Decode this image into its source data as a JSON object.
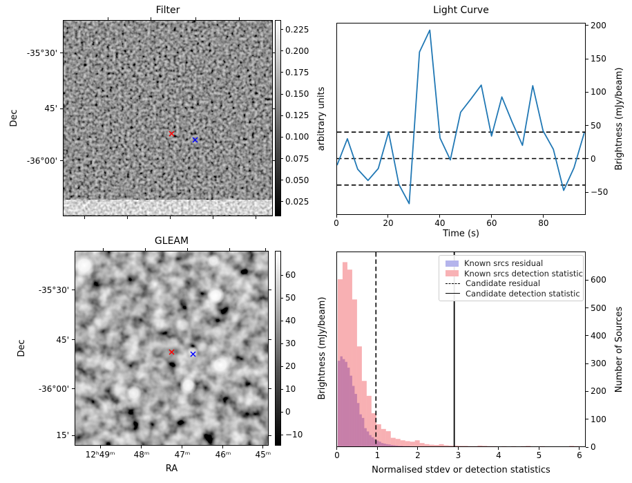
{
  "figure": {
    "background": "#ffffff"
  },
  "colors": {
    "line": "#1f77b4",
    "threshold_lines": "#000000",
    "hist_blue_fill": "rgba(62,62,215,0.42)",
    "hist_pink_fill": "rgba(238,58,66,0.40)",
    "legend_blue_swatch": "#b4b4ec",
    "legend_pink_swatch": "#f8b2b5",
    "marker_red": "#ff0000",
    "marker_blue": "#0000ff"
  },
  "chart_data": [
    {
      "type": "heatmap",
      "title": "Filter",
      "ylabel": "Dec",
      "yticks": [
        {
          "label": "-35°30'",
          "f": 0.169
        },
        {
          "label": "45'",
          "f": 0.451
        },
        {
          "label": "-36°00'",
          "f": 0.718
        }
      ],
      "xticks_bottom_f": [
        0.105,
        0.306,
        0.51,
        0.714,
        0.918
      ],
      "xticks_top_f": [
        0.214,
        0.421,
        0.632,
        0.839
      ],
      "colorbar": {
        "label": "arbitrary units",
        "vmin": 0.008,
        "vmax": 0.236,
        "ticks": [
          "0.225",
          "0.200",
          "0.175",
          "0.150",
          "0.125",
          "0.100",
          "0.075",
          "0.050",
          "0.025"
        ],
        "tick_values": [
          0.225,
          0.2,
          0.175,
          0.15,
          0.125,
          0.1,
          0.075,
          0.05,
          0.025
        ]
      },
      "markers": [
        {
          "name": "candidate-position-red-x",
          "color": "#ff0000",
          "fx": 0.516,
          "fy": 0.563
        },
        {
          "name": "reference-position-blue-x",
          "color": "#0000ff",
          "fx": 0.628,
          "fy": 0.592
        }
      ],
      "bright_stripe": {
        "fy0": 0.912,
        "fy1": 0.989
      }
    },
    {
      "type": "line",
      "title": "Light Curve",
      "xlabel": "Time (s)",
      "ylabel": "Brightness (mJy/beam)",
      "x": [
        0,
        4,
        8,
        12,
        16,
        20,
        24,
        28,
        32,
        36,
        40,
        44,
        48,
        52,
        56,
        60,
        64,
        68,
        72,
        76,
        80,
        84,
        88,
        92,
        96
      ],
      "y": [
        -10,
        30,
        -16,
        -33,
        -15,
        40,
        -39,
        -68,
        161,
        194,
        31,
        -2,
        70,
        90,
        111,
        34,
        93,
        55,
        20,
        110,
        42,
        14,
        -48,
        -14,
        39
      ],
      "hlines": [
        40,
        0,
        -40
      ],
      "xticks": [
        0,
        20,
        40,
        60,
        80
      ],
      "yticks": [
        "−50",
        "0",
        "50",
        "100",
        "150",
        "200"
      ],
      "ytick_values": [
        -50,
        0,
        50,
        100,
        150,
        200
      ],
      "xlim": [
        0,
        96.3
      ],
      "ylim": [
        -84,
        204
      ],
      "grid": false,
      "line_color": "#1f77b4"
    },
    {
      "type": "heatmap",
      "title": "GLEAM",
      "xlabel": "RA",
      "ylabel": "Dec",
      "xticks": [
        {
          "label": "12ʰ49ᵐ",
          "f": 0.132
        },
        {
          "label": "48ᵐ",
          "f": 0.345
        },
        {
          "label": "47ᵐ",
          "f": 0.555
        },
        {
          "label": "46ᵐ",
          "f": 0.765
        },
        {
          "label": "45ᵐ",
          "f": 0.971
        }
      ],
      "yticks": [
        {
          "label": "-35°30'",
          "f": 0.202
        },
        {
          "label": "45'",
          "f": 0.457
        },
        {
          "label": "-36°00'",
          "f": 0.709
        },
        {
          "label": "15'",
          "f": 0.947
        }
      ],
      "xticks_top_f": [
        0.149,
        0.363,
        0.583,
        0.8,
        0.985
      ],
      "colorbar": {
        "label": "Brightness (mJy/beam)",
        "vmin": -14.8,
        "vmax": 70.6,
        "ticks": [
          "60",
          "50",
          "40",
          "30",
          "20",
          "10",
          "0",
          "−10"
        ],
        "tick_values": [
          60,
          50,
          40,
          30,
          20,
          10,
          0,
          -10
        ]
      },
      "markers": [
        {
          "name": "candidate-position-red-x",
          "color": "#ff0000",
          "fx": 0.498,
          "fy": 0.5
        },
        {
          "name": "reference-position-blue-x",
          "color": "#0000ff",
          "fx": 0.605,
          "fy": 0.514
        }
      ],
      "sources": [
        {
          "fx": 0.047,
          "fy": 0.071,
          "r": 14,
          "a": 1
        },
        {
          "fx": 0.712,
          "fy": 0.047,
          "r": 9,
          "a": 0.9
        },
        {
          "fx": 0.724,
          "fy": 0.225,
          "r": 11,
          "a": 1
        },
        {
          "fx": 0.86,
          "fy": 0.278,
          "r": 8,
          "a": 0.5
        },
        {
          "fx": 0.552,
          "fy": 0.379,
          "r": 9,
          "a": 0.55
        },
        {
          "fx": 0.73,
          "fy": 0.408,
          "r": 8,
          "a": 0.4
        },
        {
          "fx": 0.747,
          "fy": 0.58,
          "r": 13,
          "a": 1
        },
        {
          "fx": 0.178,
          "fy": 0.586,
          "r": 8,
          "a": 0.7
        },
        {
          "fx": 0.605,
          "fy": 0.515,
          "r": 7,
          "a": 0.75
        },
        {
          "fx": 0.581,
          "fy": 0.686,
          "r": 11,
          "a": 0.95
        },
        {
          "fx": 0.302,
          "fy": 0.73,
          "r": 10,
          "a": 0.9
        },
        {
          "fx": 0.219,
          "fy": 0.796,
          "r": 7,
          "a": 0.55
        },
        {
          "fx": 0.55,
          "fy": 0.757,
          "r": 7,
          "a": 0.4
        }
      ]
    },
    {
      "type": "bar",
      "subtype": "histogram",
      "xlabel": "Normalised stdev or detection statistics",
      "ylabel": "Number of Sources",
      "xticks": [
        0,
        1,
        2,
        3,
        4,
        5,
        6
      ],
      "yticks": [
        0,
        100,
        200,
        300,
        400,
        500,
        600
      ],
      "xlim": [
        -0.017,
        6.155
      ],
      "ylim": [
        0,
        703
      ],
      "series": [
        {
          "name": "Known srcs residual",
          "color": "rgba(62,62,215,0.42)",
          "bin_start": 0,
          "bin_width": 0.06,
          "values": [
            310,
            326,
            316,
            306,
            285,
            256,
            219,
            190,
            157,
            116,
            103,
            66,
            54,
            41,
            33,
            26,
            21,
            17,
            12,
            10,
            8,
            7,
            5,
            4,
            3,
            2,
            2,
            1,
            1,
            1
          ]
        },
        {
          "name": "Known srcs detection statistic",
          "color": "rgba(238,58,66,0.40)",
          "bin_start": 0,
          "bin_width": 0.12,
          "values": [
            605,
            667,
            640,
            532,
            362,
            237,
            183,
            120,
            80,
            63,
            55,
            31,
            27,
            22,
            19,
            17,
            22,
            12,
            8,
            6,
            5,
            8,
            4,
            3,
            3,
            2,
            2,
            1,
            1,
            3,
            2,
            1,
            1,
            0,
            1,
            0,
            1,
            0,
            1,
            2,
            0,
            0,
            1,
            0,
            0,
            0,
            0,
            0,
            2,
            1
          ]
        }
      ],
      "vlines": [
        {
          "name": "Candidate residual",
          "x": 0.95,
          "style": "dashed"
        },
        {
          "name": "Candidate detection statistic",
          "x": 2.9,
          "style": "solid"
        }
      ],
      "legend": {
        "items": [
          "Known srcs residual",
          "Known srcs detection statistic",
          "Candidate residual",
          "Candidate detection statistic"
        ],
        "position": "upper right"
      }
    }
  ]
}
